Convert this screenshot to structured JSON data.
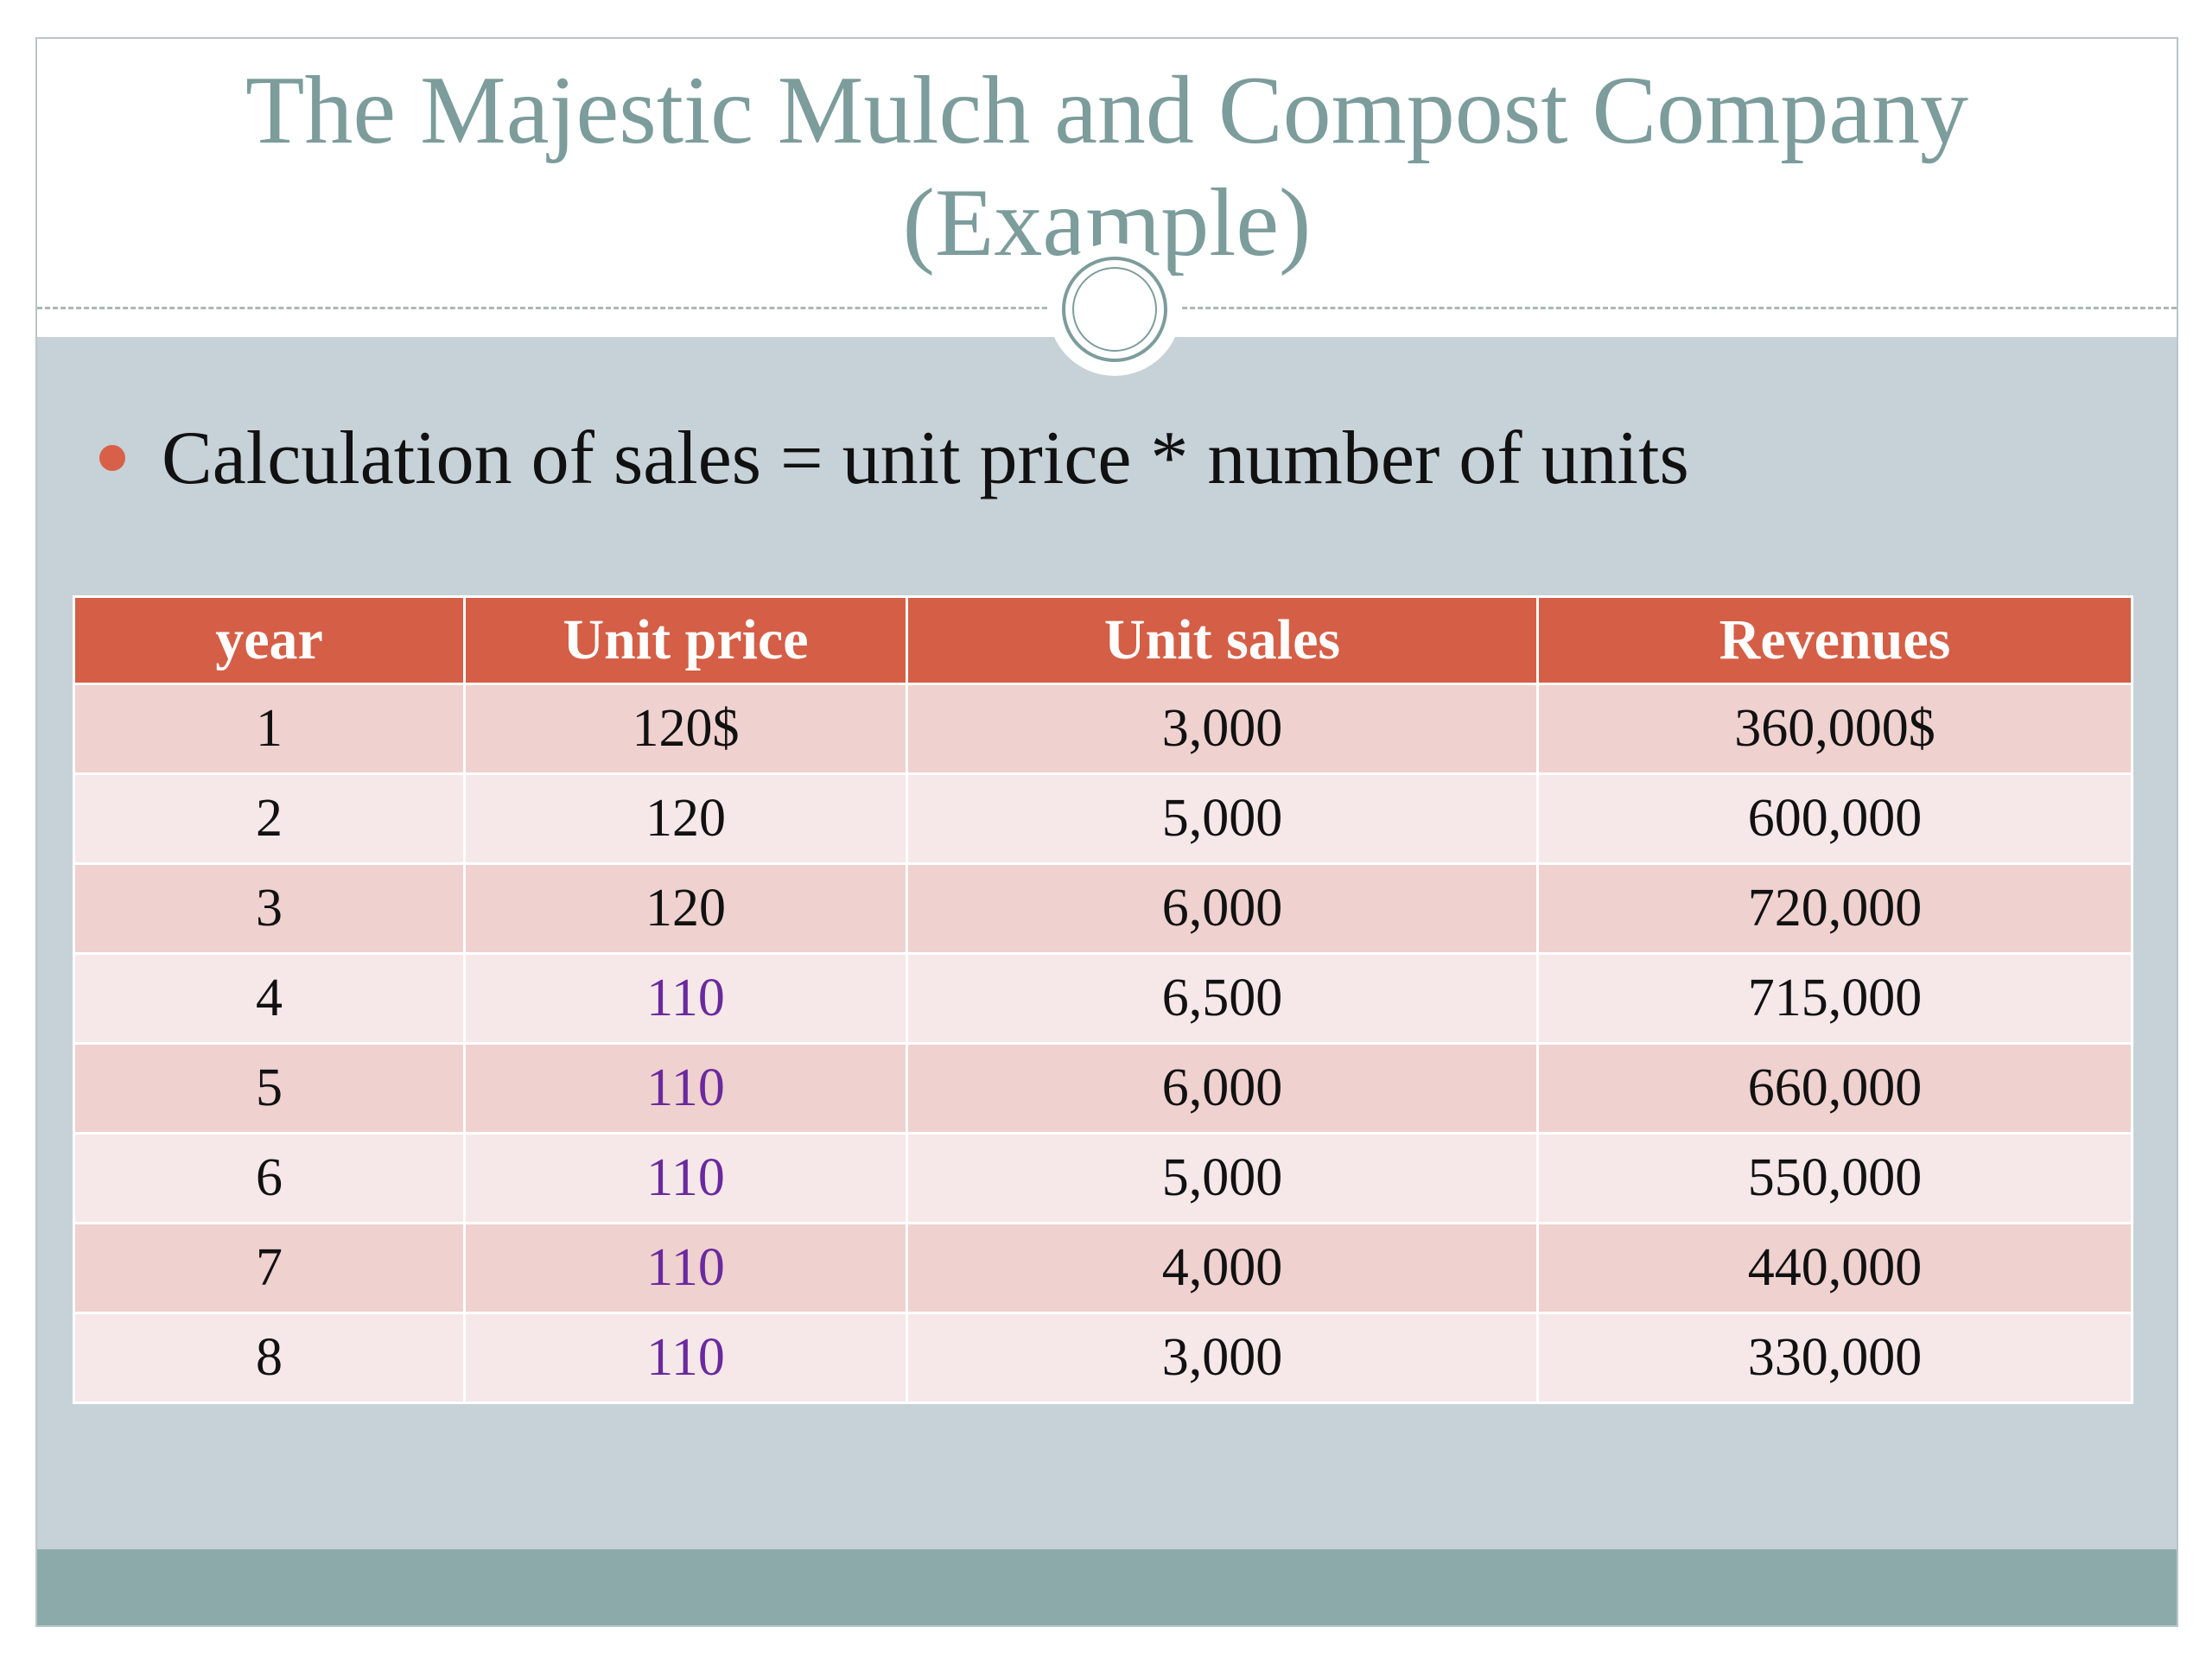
{
  "slide": {
    "title_line1": "The Majestic Mulch and Compost Company",
    "title_line2": "(Example)",
    "bullet": "Calculation of sales = unit price * number of units"
  },
  "table": {
    "headers": [
      "year",
      "Unit price",
      "Unit sales",
      "Revenues"
    ],
    "rows": [
      {
        "year": "1",
        "unit_price": "120$",
        "unit_sales": "3,000",
        "revenues": "360,000$"
      },
      {
        "year": "2",
        "unit_price": "120",
        "unit_sales": "5,000",
        "revenues": "600,000"
      },
      {
        "year": "3",
        "unit_price": "120",
        "unit_sales": "6,000",
        "revenues": "720,000"
      },
      {
        "year": "4",
        "unit_price": "110",
        "unit_sales": "6,500",
        "revenues": "715,000"
      },
      {
        "year": "5",
        "unit_price": "110",
        "unit_sales": "6,000",
        "revenues": "660,000"
      },
      {
        "year": "6",
        "unit_price": "110",
        "unit_sales": "5,000",
        "revenues": "550,000"
      },
      {
        "year": "7",
        "unit_price": "110",
        "unit_sales": "4,000",
        "revenues": "440,000"
      },
      {
        "year": "8",
        "unit_price": "110",
        "unit_sales": "3,000",
        "revenues": "330,000"
      }
    ]
  },
  "colors": {
    "header_bg": "#d45f46",
    "row_odd": "#efd1cf",
    "row_even": "#f6e8e8",
    "title_text": "#7d9c9c",
    "slide_bg": "#c6d2d7",
    "footer_band": "#8caaaa",
    "bullet_dot": "#d86048",
    "highlighted_price": "#6a2a9e"
  }
}
